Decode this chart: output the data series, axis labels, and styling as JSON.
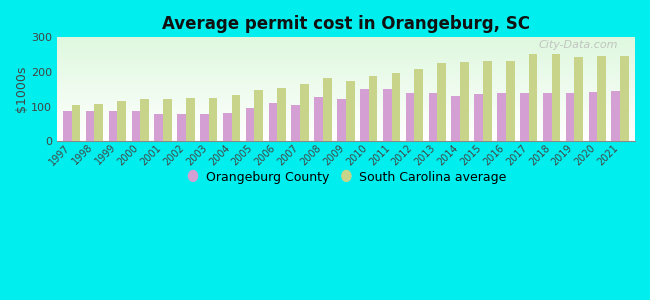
{
  "title": "Average permit cost in Orangeburg, SC",
  "ylabel": "$1000s",
  "background_color": "#00EEEE",
  "years": [
    1997,
    1998,
    1999,
    2000,
    2001,
    2002,
    2003,
    2004,
    2005,
    2006,
    2007,
    2008,
    2009,
    2010,
    2011,
    2012,
    2013,
    2014,
    2015,
    2016,
    2017,
    2018,
    2019,
    2020,
    2021
  ],
  "orangeburg": [
    88,
    88,
    87,
    87,
    77,
    77,
    78,
    80,
    95,
    110,
    105,
    128,
    123,
    152,
    150,
    140,
    140,
    130,
    137,
    140,
    140,
    138,
    138,
    143,
    145
  ],
  "sc_avg": [
    103,
    108,
    115,
    122,
    123,
    124,
    126,
    133,
    148,
    155,
    165,
    182,
    173,
    187,
    198,
    208,
    225,
    230,
    233,
    233,
    252,
    252,
    242,
    245,
    246
  ],
  "county_color": "#d4a0d4",
  "sc_color": "#c8d48a",
  "ylim": [
    0,
    300
  ],
  "yticks": [
    0,
    100,
    200,
    300
  ],
  "bar_width": 0.38,
  "watermark": "City-Data.com",
  "legend_county": "Orangeburg County",
  "legend_sc": "South Carolina average"
}
